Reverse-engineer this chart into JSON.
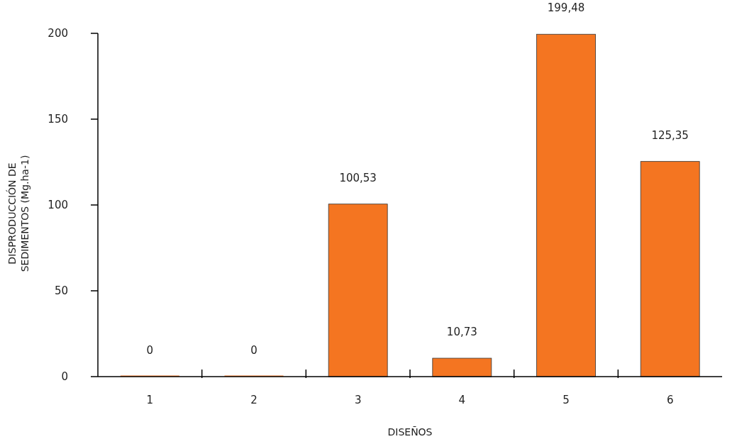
{
  "chart_data": {
    "type": "bar",
    "xlabel": "DISEÑOS",
    "ylabel": "DISPRODUCCIÓN DE SEDIMENTOS (Mg.ha-1)",
    "categories": [
      "1",
      "2",
      "3",
      "4",
      "5",
      "6"
    ],
    "values": [
      0,
      0,
      100.53,
      10.73,
      199.48,
      125.35
    ],
    "value_labels": [
      "0",
      "0",
      "100,53",
      "10,73",
      "199,48",
      "125,35"
    ],
    "color": "#f47521",
    "ylim": [
      0,
      200
    ],
    "yticks": [
      0,
      50,
      100,
      150,
      200
    ]
  }
}
